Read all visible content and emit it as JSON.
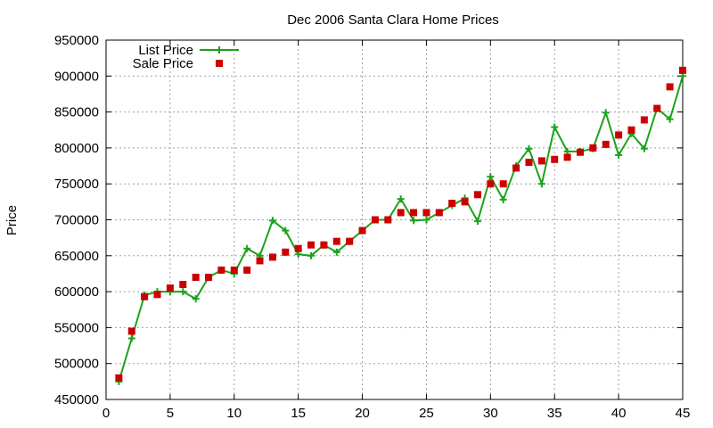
{
  "chart_data": {
    "type": "line",
    "title": "Dec 2006 Santa Clara Home Prices",
    "xlabel": "",
    "ylabel": "Price",
    "xlim": [
      0,
      45
    ],
    "ylim": [
      450000,
      950000
    ],
    "x_ticks": [
      "0",
      "5",
      "10",
      "15",
      "20",
      "25",
      "30",
      "35",
      "40",
      "45"
    ],
    "y_ticks": [
      "450000",
      "500000",
      "550000",
      "600000",
      "650000",
      "700000",
      "750000",
      "800000",
      "850000",
      "900000",
      "950000"
    ],
    "grid": true,
    "legend": "top-left",
    "x": [
      1,
      2,
      3,
      4,
      5,
      6,
      7,
      8,
      9,
      10,
      11,
      12,
      13,
      14,
      15,
      16,
      17,
      18,
      19,
      20,
      21,
      22,
      23,
      24,
      25,
      26,
      27,
      28,
      29,
      30,
      31,
      32,
      33,
      34,
      35,
      36,
      37,
      38,
      39,
      40,
      41,
      42,
      43,
      44,
      45
    ],
    "series": [
      {
        "name": "List Price",
        "style": "linespoints",
        "marker": "plus",
        "color": "#1aa31a",
        "values": [
          475000,
          535000,
          595000,
          600000,
          600000,
          600000,
          590000,
          620000,
          630000,
          625000,
          660000,
          650000,
          699000,
          685000,
          652000,
          650000,
          665000,
          655000,
          670000,
          685000,
          700000,
          700000,
          729000,
          699000,
          700000,
          710000,
          720000,
          730000,
          698000,
          760000,
          728000,
          775000,
          799000,
          750000,
          829000,
          795000,
          795000,
          799000,
          849000,
          790000,
          820000,
          799000,
          855000,
          840000,
          900000
        ]
      },
      {
        "name": "Sale Price",
        "style": "points",
        "marker": "square",
        "color": "#cc0000",
        "values": [
          480000,
          545000,
          593000,
          596000,
          605000,
          610000,
          620000,
          620000,
          630000,
          630000,
          630000,
          643000,
          648000,
          655000,
          660000,
          665000,
          665000,
          670000,
          670000,
          685000,
          700000,
          700000,
          710000,
          710000,
          710000,
          710000,
          723000,
          725000,
          735000,
          750000,
          750000,
          772000,
          780000,
          782000,
          784000,
          787000,
          794000,
          800000,
          805000,
          818000,
          825000,
          839000,
          855000,
          885000,
          908000
        ]
      }
    ]
  }
}
